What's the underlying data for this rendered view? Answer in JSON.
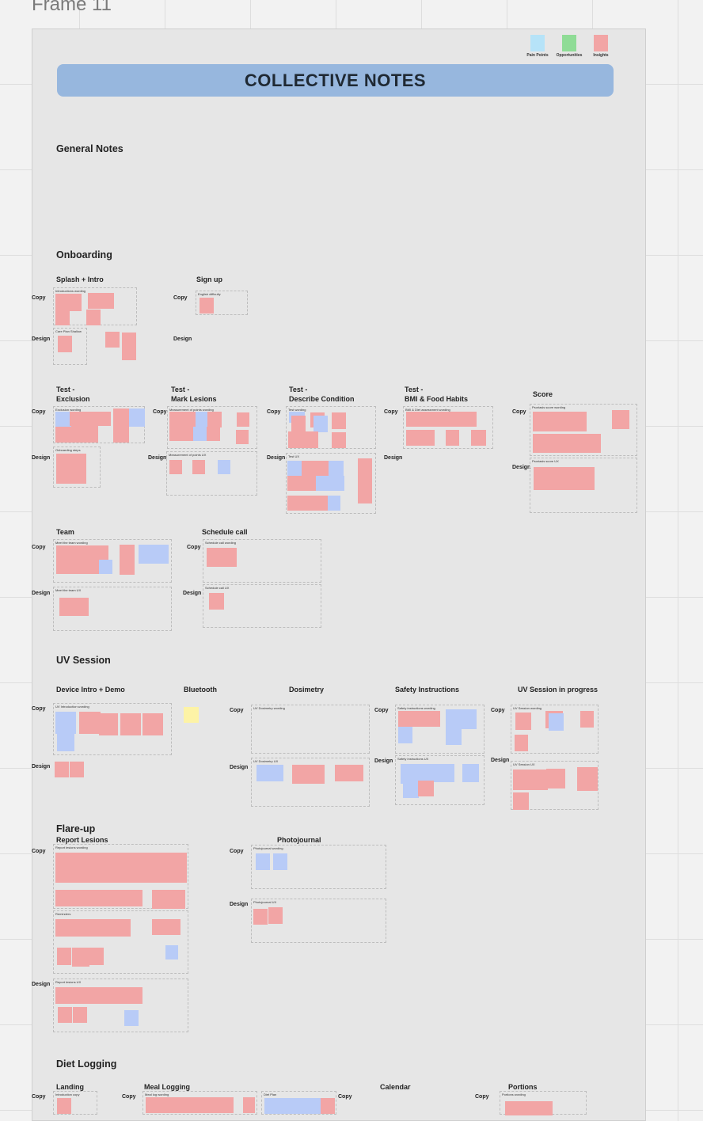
{
  "frame_label": "Frame 11",
  "title": "COLLECTIVE NOTES",
  "legend": [
    {
      "label": "Pain Points",
      "color": "#b6e3f8"
    },
    {
      "label": "Opportunities",
      "color": "#8fdc96"
    },
    {
      "label": "Insights",
      "color": "#f2a5a5"
    }
  ],
  "sections": {
    "general": "General Notes",
    "onboarding": "Onboarding",
    "uv_session": "UV Session",
    "flare_up": "Flare-up",
    "diet_logging": "Diet Logging"
  },
  "rows": {
    "copy": "Copy",
    "design": "Design"
  },
  "onboarding": {
    "splash": {
      "title": "Splash + Intro",
      "copy_box": "Introductions wording",
      "design_box": "Care Plan Shallow"
    },
    "signup": {
      "title": "Sign up",
      "copy_box": "English difficulty"
    },
    "exclusion": {
      "title_1": "Test -",
      "title_2": "Exclusion",
      "copy_box": "Exclusion wording",
      "design_box": "Onboarding steps"
    },
    "lesions": {
      "title_1": "Test -",
      "title_2": "Mark Lesions",
      "copy_box": "Measurement of points wording",
      "design_box": "Measurement of points UX"
    },
    "describe": {
      "title_1": "Test -",
      "title_2": "Describe Condition",
      "copy_box": "Test wording",
      "design_box": "Test UX"
    },
    "bmi": {
      "title_1": "Test -",
      "title_2": "BMI & Food Habits",
      "copy_box": "BMI & Diet assessment wording"
    },
    "score": {
      "title": "Score",
      "copy_box": "Psoriasis score wording",
      "design_box": "Psoriasis score UX"
    },
    "team": {
      "title": "Team",
      "copy_box": "Meet the team wording",
      "design_box": "Meet the team UX"
    },
    "schedule": {
      "title": "Schedule call",
      "copy_box": "Schedule call wording",
      "design_box": "Schedule call UX"
    }
  },
  "uv": {
    "device": {
      "title": "Device Intro + Demo",
      "copy_box": "UV Introduction wording"
    },
    "bluetooth": {
      "title": "Bluetooth"
    },
    "dosimetry": {
      "title": "Dosimetry",
      "copy_box": "UV Dosimetry wording",
      "design_box": "UV Dosimetry UX"
    },
    "safety": {
      "title": "Safety Instructions",
      "copy_box": "Safety instructions wording",
      "design_box": "Safety instructions UX"
    },
    "progress": {
      "title": "UV Session in progress",
      "copy_box": "UV Session wording",
      "design_box": "UV Session UX"
    }
  },
  "flare": {
    "report": {
      "title": "Report Lesions",
      "copy_box": "Report lesions wording",
      "mid_box": "Reminders",
      "design_box": "Report lesions UX"
    },
    "photo": {
      "title": "Photojournal",
      "copy_box": "Photojournal wording",
      "design_box": "Photojournal UX"
    }
  },
  "diet": {
    "landing": {
      "title": "Landing",
      "copy_box": "Introduction copy"
    },
    "meal": {
      "title": "Meal Logging",
      "copy_box": "Meal log wording",
      "copy_box_2": "Diet Plan"
    },
    "calendar": {
      "title": "Calendar"
    },
    "portions": {
      "title": "Portions",
      "copy_box": "Portions wording"
    }
  }
}
